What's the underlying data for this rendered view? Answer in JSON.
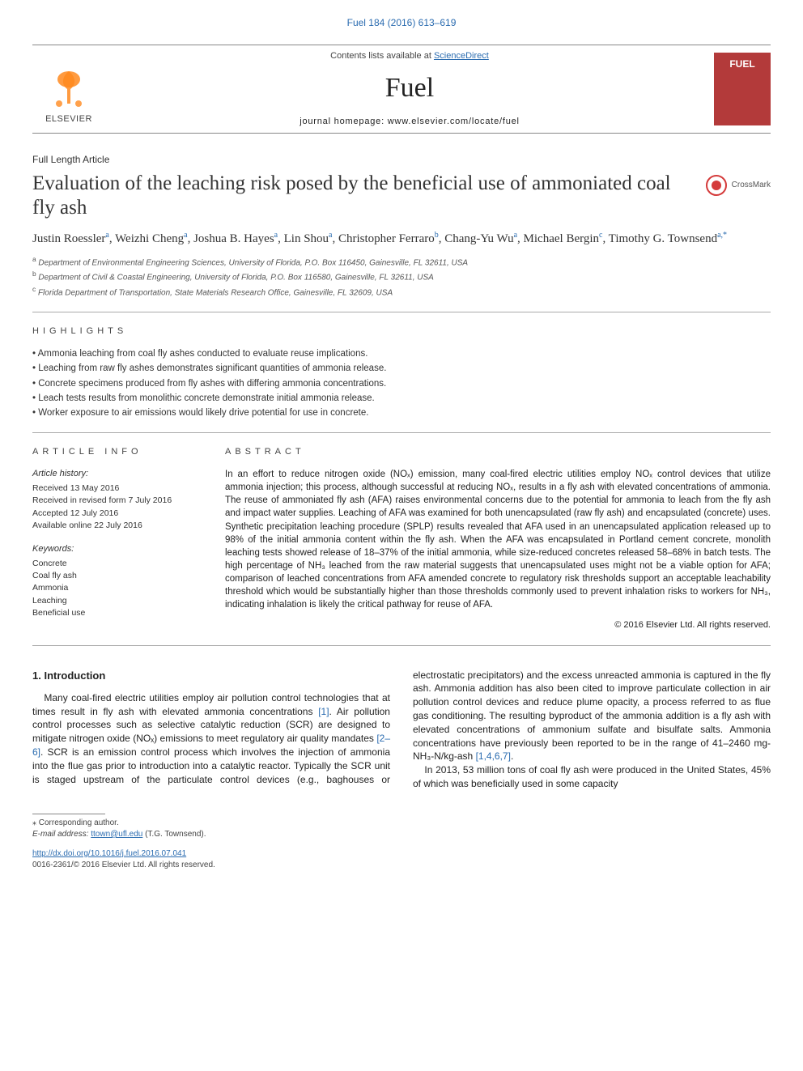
{
  "journal_ref": {
    "text": "Fuel 184 (2016) 613–619",
    "link_color": "#2b6cb0"
  },
  "header": {
    "contents_prefix": "Contents lists available at ",
    "contents_link": "ScienceDirect",
    "journal_name": "Fuel",
    "homepage_prefix": "journal homepage: ",
    "homepage_url": "www.elsevier.com/locate/fuel",
    "publisher_logo_text": "ELSEVIER",
    "publisher_logo_color": "#ff8a1f",
    "cover_label": "FUEL",
    "cover_bg": "#b33a3a"
  },
  "article_type": "Full Length Article",
  "title": "Evaluation of the leaching risk posed by the beneficial use of ammoniated coal fly ash",
  "crossmark_label": "CrossMark",
  "authors_html_parts": [
    {
      "name": "Justin Roessler",
      "aff": "a"
    },
    {
      "name": "Weizhi Cheng",
      "aff": "a"
    },
    {
      "name": "Joshua B. Hayes",
      "aff": "a"
    },
    {
      "name": "Lin Shou",
      "aff": "a"
    },
    {
      "name": "Christopher Ferraro",
      "aff": "b"
    },
    {
      "name": "Chang-Yu Wu",
      "aff": "a"
    },
    {
      "name": "Michael Bergin",
      "aff": "c"
    },
    {
      "name": "Timothy G. Townsend",
      "aff": "a,*"
    }
  ],
  "affiliations": [
    {
      "key": "a",
      "text": "Department of Environmental Engineering Sciences, University of Florida, P.O. Box 116450, Gainesville, FL 32611, USA"
    },
    {
      "key": "b",
      "text": "Department of Civil & Coastal Engineering, University of Florida, P.O. Box 116580, Gainesville, FL 32611, USA"
    },
    {
      "key": "c",
      "text": "Florida Department of Transportation, State Materials Research Office, Gainesville, FL 32609, USA"
    }
  ],
  "highlights_label": "HIGHLIGHTS",
  "highlights": [
    "Ammonia leaching from coal fly ashes conducted to evaluate reuse implications.",
    "Leaching from raw fly ashes demonstrates significant quantities of ammonia release.",
    "Concrete specimens produced from fly ashes with differing ammonia concentrations.",
    "Leach tests results from monolithic concrete demonstrate initial ammonia release.",
    "Worker exposure to air emissions would likely drive potential for use in concrete."
  ],
  "article_info_label": "ARTICLE INFO",
  "abstract_label": "ABSTRACT",
  "history_heading": "Article history:",
  "history": [
    "Received 13 May 2016",
    "Received in revised form 7 July 2016",
    "Accepted 12 July 2016",
    "Available online 22 July 2016"
  ],
  "keywords_heading": "Keywords:",
  "keywords": [
    "Concrete",
    "Coal fly ash",
    "Ammonia",
    "Leaching",
    "Beneficial use"
  ],
  "abstract": "In an effort to reduce nitrogen oxide (NOₓ) emission, many coal-fired electric utilities employ NOₓ control devices that utilize ammonia injection; this process, although successful at reducing NOₓ, results in a fly ash with elevated concentrations of ammonia. The reuse of ammoniated fly ash (AFA) raises environmental concerns due to the potential for ammonia to leach from the fly ash and impact water supplies. Leaching of AFA was examined for both unencapsulated (raw fly ash) and encapsulated (concrete) uses. Synthetic precipitation leaching procedure (SPLP) results revealed that AFA used in an unencapsulated application released up to 98% of the initial ammonia content within the fly ash. When the AFA was encapsulated in Portland cement concrete, monolith leaching tests showed release of 18–37% of the initial ammonia, while size-reduced concretes released 58–68% in batch tests. The high percentage of NH₃ leached from the raw material suggests that unencapsulated uses might not be a viable option for AFA; comparison of leached concentrations from AFA amended concrete to regulatory risk thresholds support an acceptable leachability threshold which would be substantially higher than those thresholds commonly used to prevent inhalation risks to workers for NH₃, indicating inhalation is likely the critical pathway for reuse of AFA.",
  "abstract_copyright": "© 2016 Elsevier Ltd. All rights reserved.",
  "intro_heading": "1. Introduction",
  "intro_p1_before": "Many coal-fired electric utilities employ air pollution control technologies that at times result in fly ash with elevated ammonia concentrations ",
  "intro_ref1": "[1]",
  "intro_p1_mid": ". Air pollution control processes such as selective catalytic reduction (SCR) are designed to mitigate nitrogen oxide (NOₓ) emissions to meet regulatory air quality mandates ",
  "intro_ref2": "[2–6]",
  "intro_p1_after": ". SCR is an emission control process which involves the injection of ammonia into the flue gas prior to introduction into a catalytic reactor. Typically the SCR unit is staged upstream of the particulate control devices (e.g., baghouses or electrostatic precipitators) and the excess unreacted ammonia is captured in the fly ash. Ammonia addition has also been cited to improve particulate collection in air pollution control devices and reduce plume opacity, a process referred to as flue gas conditioning. The resulting byproduct of the ammonia addition is a fly ash with elevated concentrations of ammonium sulfate and bisulfate salts. Ammonia concentrations have previously been reported to be in the range of 41–2460 mg-NH₃-N/kg-ash ",
  "intro_ref3": "[1,4,6,7]",
  "intro_p1_end": ".",
  "intro_p2": "In 2013, 53 million tons of coal fly ash were produced in the United States, 45% of which was beneficially used in some capacity",
  "footer": {
    "corr_label": "⁎ Corresponding author.",
    "email_label": "E-mail address: ",
    "email": "ttown@ufl.edu",
    "email_suffix": " (T.G. Townsend).",
    "doi": "http://dx.doi.org/10.1016/j.fuel.2016.07.041",
    "issn_line": "0016-2361/© 2016 Elsevier Ltd. All rights reserved."
  },
  "colors": {
    "link": "#2b6cb0",
    "rule": "#aaaaaa",
    "text": "#222222",
    "muted": "#555555"
  }
}
